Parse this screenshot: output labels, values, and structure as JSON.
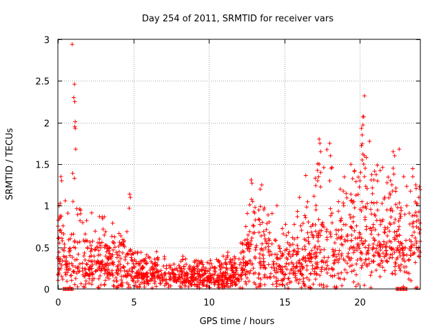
{
  "chart_data": {
    "type": "scatter",
    "title": "Day 254 of 2011, SRMTID for receiver vars",
    "xlabel": "GPS time / hours",
    "ylabel": "SRMTID / TECUs",
    "xlim": [
      0,
      24
    ],
    "ylim": [
      0,
      3
    ],
    "xticks": [
      0,
      5,
      10,
      15,
      20
    ],
    "yticks": [
      0,
      0.5,
      1,
      1.5,
      2,
      2.5,
      3
    ],
    "ytick_labels": [
      "0",
      "0.5",
      "1",
      "1.5",
      "2",
      "2.5",
      "3"
    ],
    "grid": true,
    "marker": "+",
    "color": "#ff0000",
    "profile": {
      "hours": [
        0,
        0.5,
        1.0,
        1.5,
        2.0,
        3.0,
        4.0,
        5.0,
        6.0,
        7.0,
        8.0,
        9.0,
        10.0,
        11.0,
        12.0,
        12.5,
        13.0,
        14.0,
        15.0,
        16.0,
        17.0,
        18.0,
        19.0,
        20.0,
        21.0,
        22.0,
        23.0,
        24.0
      ],
      "median": [
        0.4,
        0.35,
        0.3,
        0.35,
        0.3,
        0.32,
        0.28,
        0.22,
        0.18,
        0.16,
        0.15,
        0.16,
        0.15,
        0.14,
        0.18,
        0.3,
        0.45,
        0.35,
        0.25,
        0.35,
        0.45,
        0.45,
        0.5,
        0.65,
        0.6,
        0.55,
        0.45,
        0.6
      ],
      "spread": [
        0.35,
        0.3,
        0.3,
        0.3,
        0.25,
        0.25,
        0.25,
        0.18,
        0.12,
        0.1,
        0.1,
        0.12,
        0.12,
        0.12,
        0.15,
        0.25,
        0.35,
        0.3,
        0.22,
        0.3,
        0.4,
        0.4,
        0.4,
        0.5,
        0.45,
        0.45,
        0.4,
        0.4
      ]
    },
    "outliers": [
      {
        "x": 0.95,
        "y": 2.94
      },
      {
        "x": 1.1,
        "y": 2.46
      },
      {
        "x": 1.05,
        "y": 2.3
      },
      {
        "x": 1.12,
        "y": 2.25
      },
      {
        "x": 1.15,
        "y": 2.01
      },
      {
        "x": 1.12,
        "y": 1.95
      },
      {
        "x": 1.15,
        "y": 1.93
      },
      {
        "x": 1.18,
        "y": 1.68
      },
      {
        "x": 0.2,
        "y": 1.35
      },
      {
        "x": 0.25,
        "y": 1.3
      },
      {
        "x": 0.98,
        "y": 1.39
      },
      {
        "x": 1.1,
        "y": 1.33
      },
      {
        "x": 0.15,
        "y": 1.03
      },
      {
        "x": 1.0,
        "y": 1.05
      },
      {
        "x": 1.45,
        "y": 0.96
      },
      {
        "x": 4.75,
        "y": 1.14
      },
      {
        "x": 4.8,
        "y": 1.1
      },
      {
        "x": 4.72,
        "y": 0.97
      },
      {
        "x": 12.8,
        "y": 1.31
      },
      {
        "x": 12.85,
        "y": 1.27
      },
      {
        "x": 13.5,
        "y": 1.25
      },
      {
        "x": 13.4,
        "y": 1.2
      },
      {
        "x": 12.9,
        "y": 1.05
      },
      {
        "x": 16.0,
        "y": 1.1
      },
      {
        "x": 17.3,
        "y": 1.8
      },
      {
        "x": 17.35,
        "y": 1.75
      },
      {
        "x": 17.4,
        "y": 1.65
      },
      {
        "x": 17.3,
        "y": 1.5
      },
      {
        "x": 17.4,
        "y": 1.4
      },
      {
        "x": 17.2,
        "y": 1.3
      },
      {
        "x": 18.0,
        "y": 1.75
      },
      {
        "x": 18.05,
        "y": 1.6
      },
      {
        "x": 18.1,
        "y": 1.45
      },
      {
        "x": 18.0,
        "y": 1.3
      },
      {
        "x": 18.7,
        "y": 1.2
      },
      {
        "x": 19.6,
        "y": 1.05
      },
      {
        "x": 20.2,
        "y": 2.07
      },
      {
        "x": 20.3,
        "y": 2.32
      },
      {
        "x": 20.25,
        "y": 2.07
      },
      {
        "x": 20.1,
        "y": 1.93
      },
      {
        "x": 20.2,
        "y": 1.97
      },
      {
        "x": 20.15,
        "y": 1.85
      },
      {
        "x": 20.1,
        "y": 1.72
      },
      {
        "x": 20.2,
        "y": 1.62
      },
      {
        "x": 20.3,
        "y": 1.6
      },
      {
        "x": 20.15,
        "y": 1.55
      },
      {
        "x": 20.25,
        "y": 1.5
      },
      {
        "x": 20.35,
        "y": 1.45
      },
      {
        "x": 20.05,
        "y": 1.4
      },
      {
        "x": 20.3,
        "y": 1.35
      },
      {
        "x": 20.0,
        "y": 1.3
      },
      {
        "x": 22.2,
        "y": 1.65
      },
      {
        "x": 22.3,
        "y": 1.6
      },
      {
        "x": 22.6,
        "y": 1.68
      },
      {
        "x": 22.2,
        "y": 1.45
      },
      {
        "x": 22.25,
        "y": 1.38
      },
      {
        "x": 22.9,
        "y": 1.35
      },
      {
        "x": 23.5,
        "y": 1.35
      },
      {
        "x": 23.7,
        "y": 1.25
      },
      {
        "x": 21.6,
        "y": 1.08
      },
      {
        "x": 23.9,
        "y": 1.1
      },
      {
        "x": 23.1,
        "y": 1.0
      }
    ],
    "zero_runs": [
      {
        "from": 0.35,
        "to": 1.05
      },
      {
        "from": 22.4,
        "to": 23.15
      }
    ],
    "n_points": 1800
  }
}
